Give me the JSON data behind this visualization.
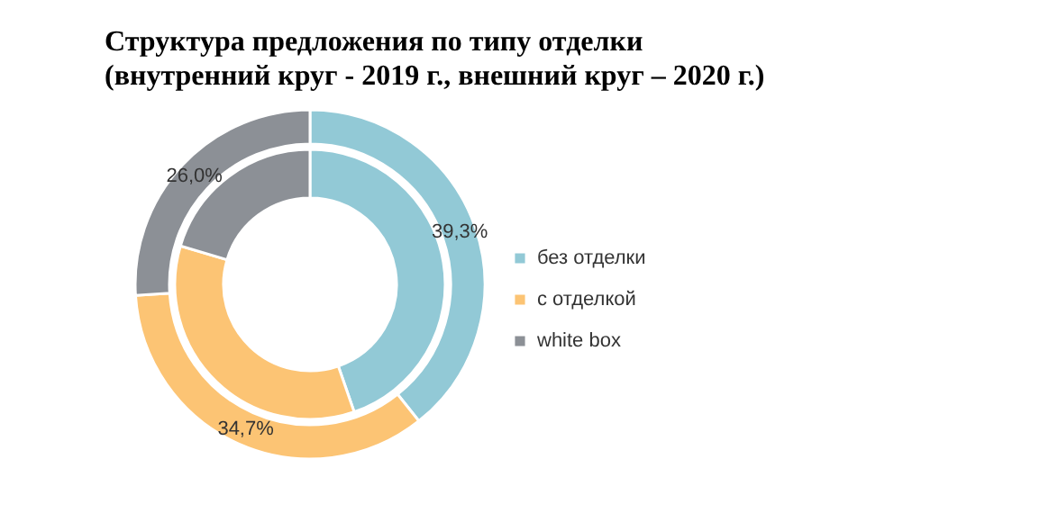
{
  "chart_data": {
    "type": "donut",
    "title": "Структура предложения по типу отделки\n(внутренний круг - 2019 г., внешний круг – 2020 г.)",
    "categories": [
      "без отделки",
      "с отделкой",
      "white box"
    ],
    "colors": [
      "#92c9d6",
      "#fcc474",
      "#8c9096"
    ],
    "series": [
      {
        "values": [
          44.7,
          34.9,
          20.4
        ]
      },
      {
        "values": [
          39.3,
          34.7,
          26.0
        ],
        "value_labels": [
          "39,3%",
          "34,7%",
          "26,0%"
        ]
      }
    ],
    "legend": "right"
  }
}
